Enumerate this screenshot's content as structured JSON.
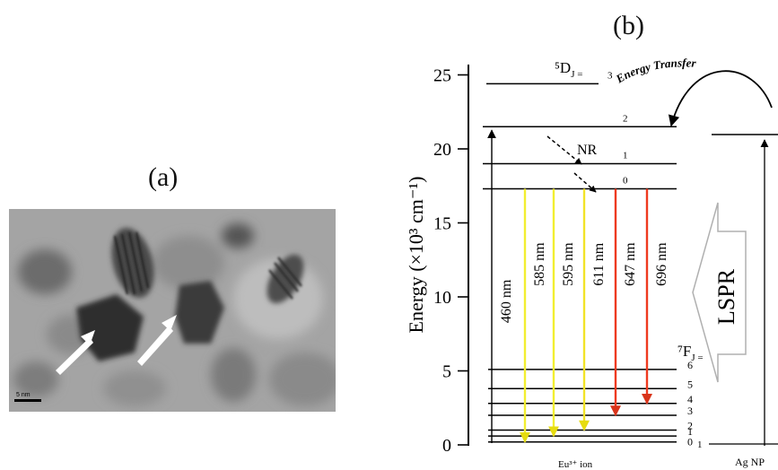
{
  "panel_a": {
    "label": "(a)",
    "scale_bar": "5 nm"
  },
  "panel_b": {
    "label": "(b)",
    "ylabel": "Energy (×10³ cm⁻¹)",
    "y_ticks": [
      "0",
      "5",
      "10",
      "15",
      "20",
      "25"
    ],
    "ylim": [
      0,
      27
    ],
    "upper_manifold": {
      "label": "⁵D",
      "sub": "J =",
      "levels": [
        {
          "j": "0",
          "energy": 17.3
        },
        {
          "j": "1",
          "energy": 19.0
        },
        {
          "j": "2",
          "energy": 21.5
        },
        {
          "j": "3",
          "energy": 24.4
        }
      ]
    },
    "lower_manifold": {
      "label": "⁷F",
      "sub": "J =",
      "levels": [
        {
          "j": "0",
          "energy": 0.2
        },
        {
          "j": "1",
          "energy": 0.6
        },
        {
          "j": "2",
          "energy": 1.0
        },
        {
          "j": "3",
          "energy": 2.0
        },
        {
          "j": "4",
          "energy": 2.8
        },
        {
          "j": "5",
          "energy": 3.8
        },
        {
          "j": "6",
          "energy": 5.1
        }
      ]
    },
    "nr_label": "NR",
    "excitation": {
      "label": "460 nm",
      "from": 0,
      "to": 21.5
    },
    "emissions": [
      {
        "label": "585 nm",
        "color": "#f2ee30",
        "from": 17.3,
        "to": 0.2
      },
      {
        "label": "595 nm",
        "color": "#f2ee30",
        "from": 17.3,
        "to": 0.6
      },
      {
        "label": "611 nm",
        "color": "#f2e328",
        "from": 17.3,
        "to": 1.0
      },
      {
        "label": "647 nm",
        "color": "#ee3a1f",
        "from": 17.3,
        "to": 2.0
      },
      {
        "label": "696 nm",
        "color": "#ee3a1f",
        "from": 17.3,
        "to": 2.8
      }
    ],
    "energy_transfer": "Energy Transfer",
    "lspr": "LSPR",
    "eu_label": "Eu³⁺ ion",
    "ag_label": "Ag NP",
    "ag_zero": "1"
  }
}
